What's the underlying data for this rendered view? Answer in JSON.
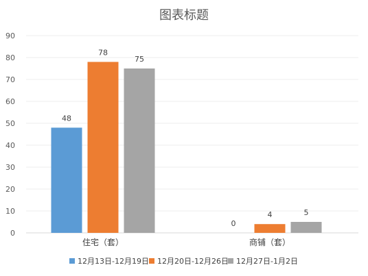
{
  "chart_data": {
    "type": "bar",
    "title": "图表标题",
    "categories": [
      "住宅（套）",
      "商铺（套）"
    ],
    "series": [
      {
        "name": "12月13日-12月19日",
        "color": "#5b9bd5",
        "values": [
          48,
          0
        ]
      },
      {
        "name": "12月20日-12月26日",
        "color": "#ed7d31",
        "values": [
          78,
          4
        ]
      },
      {
        "name": "12月27日-1月2日",
        "color": "#a5a5a5",
        "values": [
          75,
          5
        ]
      }
    ],
    "ylim": [
      0,
      90
    ],
    "yticks": [
      "0",
      "10",
      "20",
      "30",
      "40",
      "50",
      "60",
      "70",
      "80",
      "90"
    ],
    "grid": true,
    "legend_position": "bottom"
  }
}
